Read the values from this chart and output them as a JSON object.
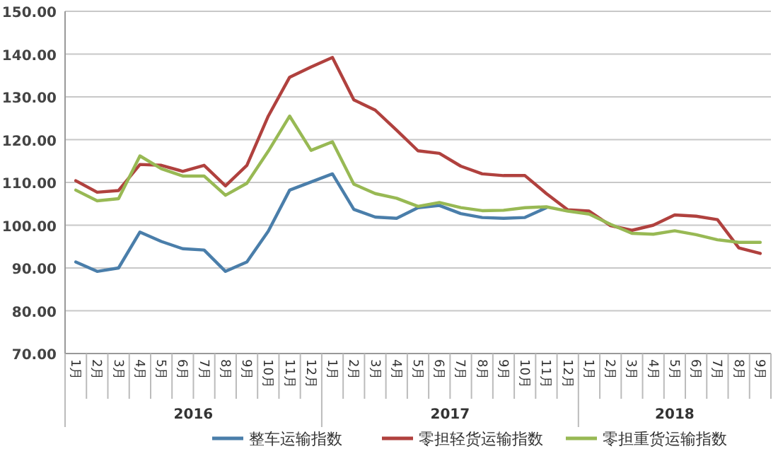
{
  "chart_data": {
    "type": "line",
    "categories": [
      "1月",
      "2月",
      "3月",
      "4月",
      "5月",
      "6月",
      "7月",
      "8月",
      "9月",
      "10月",
      "11月",
      "12月",
      "1月",
      "2月",
      "3月",
      "4月",
      "5月",
      "6月",
      "7月",
      "8月",
      "9月",
      "10月",
      "11月",
      "12月",
      "1月",
      "2月",
      "3月",
      "4月",
      "5月",
      "6月",
      "7月",
      "8月",
      "9月"
    ],
    "series": [
      {
        "name": "整车运输指数",
        "color": "#4a7eaa",
        "values": [
          91.4,
          89.2,
          90,
          98.4,
          96.2,
          94.5,
          94.2,
          89.2,
          91.4,
          98.6,
          108.2,
          110.1,
          112,
          103.7,
          101.9,
          101.6,
          104.1,
          104.6,
          102.7,
          101.8,
          101.6,
          101.8,
          104.1,
          null,
          null,
          null,
          null,
          null,
          null,
          null,
          null,
          null,
          null
        ]
      },
      {
        "name": "零担轻货运输指数",
        "color": "#b0413e",
        "values": [
          110.4,
          107.7,
          108.1,
          114.2,
          114,
          112.6,
          114,
          109.2,
          114,
          125.5,
          134.6,
          137,
          139.2,
          129.3,
          126.9,
          122.2,
          117.4,
          116.8,
          113.8,
          112,
          111.6,
          111.6,
          107.4,
          103.6,
          103.3,
          99.9,
          98.8,
          100,
          102.4,
          102.1,
          101.3,
          94.7,
          93.4
        ]
      },
      {
        "name": "零担重货运输指数",
        "color": "#98b954",
        "values": [
          108.2,
          105.7,
          106.2,
          116.2,
          113.2,
          111.5,
          111.5,
          107,
          109.8,
          117.3,
          125.5,
          117.5,
          119.5,
          109.6,
          107.4,
          106.3,
          104.4,
          105.3,
          104.1,
          103.4,
          103.5,
          104.1,
          104.3,
          103.3,
          102.6,
          100.2,
          98.1,
          97.9,
          98.7,
          97.8,
          96.6,
          96,
          96
        ]
      }
    ],
    "annotations": [
      "2016",
      "2017",
      "2018"
    ],
    "ylim": [
      70,
      150
    ],
    "yticks": [
      {
        "value": 70,
        "label": "70.00"
      },
      {
        "value": 80,
        "label": "80.00"
      },
      {
        "value": 90,
        "label": "90.00"
      },
      {
        "value": 100,
        "label": "100.00"
      },
      {
        "value": 110,
        "label": "110.00"
      },
      {
        "value": 120,
        "label": "120.00"
      },
      {
        "value": 130,
        "label": "130.00"
      },
      {
        "value": 140,
        "label": "140.00"
      },
      {
        "value": 150,
        "label": "150.00"
      }
    ],
    "grid": "y",
    "legend": "bottom",
    "marker": "none",
    "line_style": "solid"
  }
}
